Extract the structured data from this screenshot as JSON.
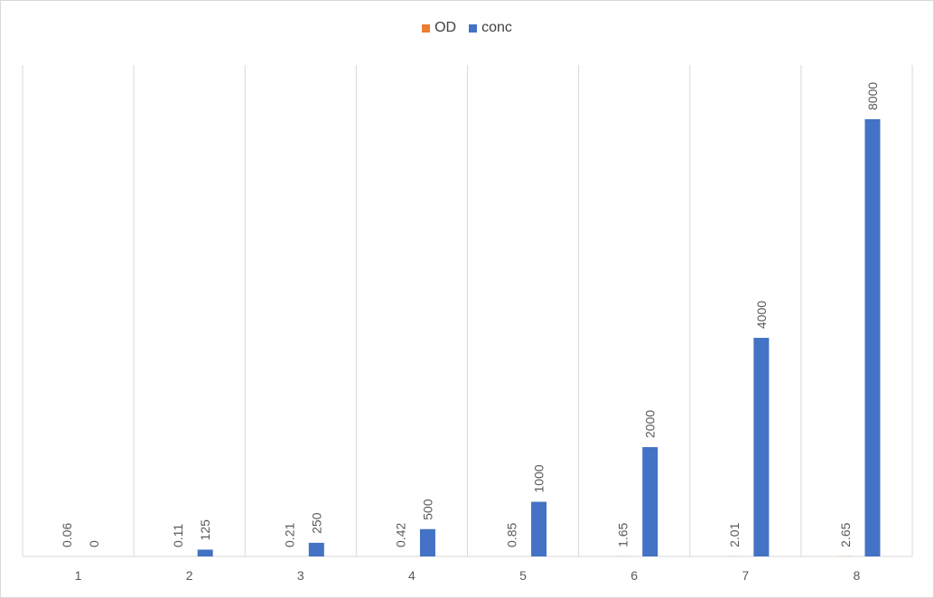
{
  "chart_data": {
    "type": "bar",
    "categories": [
      "1",
      "2",
      "3",
      "4",
      "5",
      "6",
      "7",
      "8"
    ],
    "series": [
      {
        "name": "OD",
        "color": "#ED7D31",
        "values": [
          0.06,
          0.11,
          0.21,
          0.42,
          0.85,
          1.65,
          2.01,
          2.65
        ]
      },
      {
        "name": "conc",
        "color": "#4472C4",
        "values": [
          0,
          125,
          250,
          500,
          1000,
          2000,
          4000,
          8000
        ]
      }
    ],
    "data_labels": {
      "OD": [
        "0.06",
        "0.11",
        "0.21",
        "0.42",
        "0.85",
        "1.65",
        "2.01",
        "2.65"
      ],
      "conc": [
        "0",
        "125",
        "250",
        "500",
        "1000",
        "2000",
        "4000",
        "8000"
      ]
    },
    "ylim": [
      0,
      9000
    ],
    "legend_position": "top",
    "grid": "vertical category separators",
    "xlabel": "",
    "ylabel": "",
    "title": ""
  }
}
